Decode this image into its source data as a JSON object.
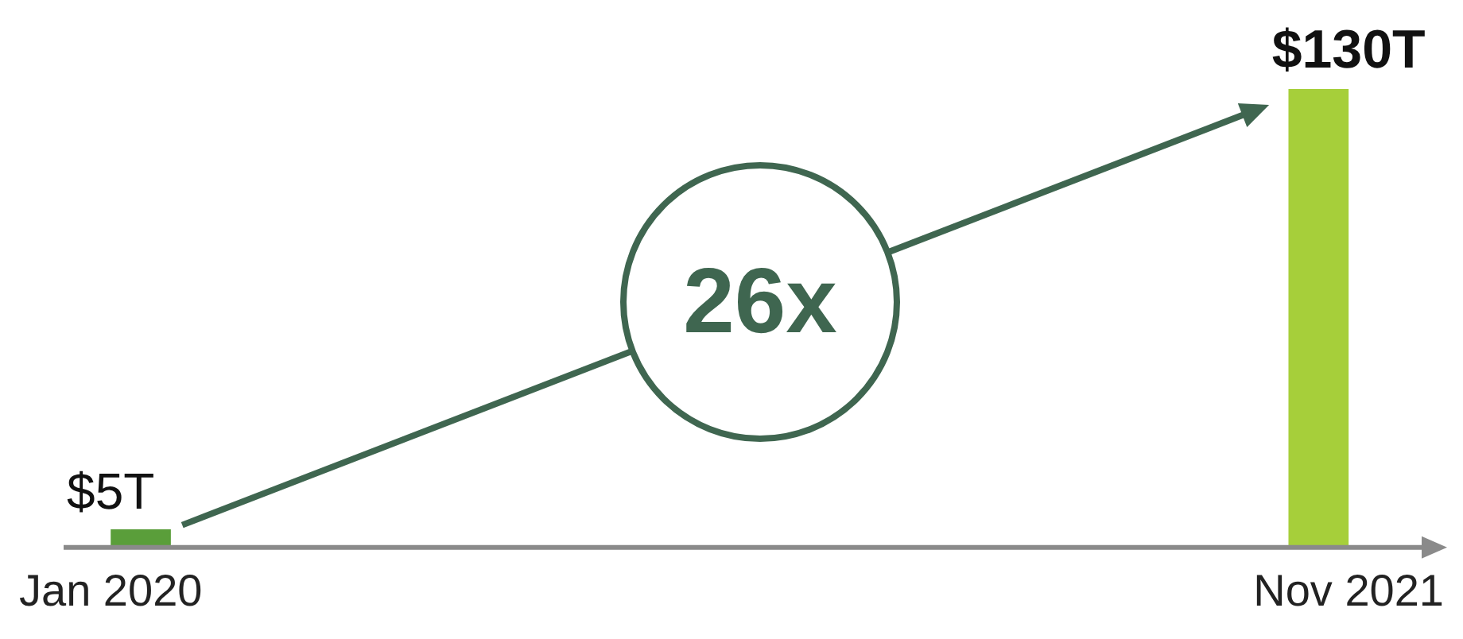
{
  "chart_data": {
    "type": "bar",
    "categories": [
      "Jan 2020",
      "Nov 2021"
    ],
    "values": [
      5,
      130
    ],
    "colors": [
      "#5a9e3a",
      "#a6cf3a"
    ],
    "value_labels": [
      "$5T",
      "$130T"
    ],
    "annotations": [
      "26x"
    ],
    "legend": false,
    "grid": false
  }
}
